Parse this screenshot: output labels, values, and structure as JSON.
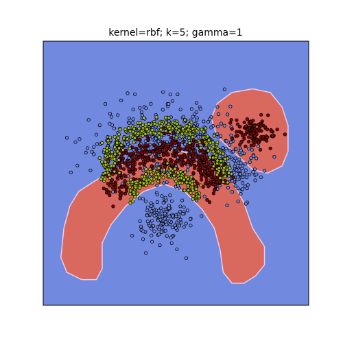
{
  "chart_data": {
    "type": "scatter",
    "title": "kernel=rbf; k=5; gamma=1",
    "xlabel": "",
    "ylabel": "",
    "axes_ticks": "none",
    "grid": false,
    "background_class_color": "#7289e0",
    "region_color": "#d9685f",
    "region_edge_color": "#e8d0e8",
    "plot_border_color": "#000000",
    "regions": [
      {
        "name": "",
        "class": "red",
        "boundary": [
          [
            -1.4,
            -0.05
          ],
          [
            -1.55,
            -0.25
          ],
          [
            -1.65,
            -0.55
          ],
          [
            -1.7,
            -0.95
          ],
          [
            -1.6,
            -1.15
          ],
          [
            -1.35,
            -1.25
          ],
          [
            -1.1,
            -1.25
          ],
          [
            -1.0,
            -1.1
          ],
          [
            -1.0,
            -0.75
          ],
          [
            -0.85,
            -0.5
          ],
          [
            -0.6,
            -0.25
          ],
          [
            -0.3,
            -0.05
          ],
          [
            0.05,
            0.05
          ],
          [
            0.4,
            -0.05
          ],
          [
            0.7,
            -0.3
          ],
          [
            0.9,
            -0.55
          ],
          [
            1.0,
            -0.85
          ],
          [
            1.05,
            -1.15
          ],
          [
            1.2,
            -1.3
          ],
          [
            1.4,
            -1.3
          ],
          [
            1.6,
            -1.2
          ],
          [
            1.75,
            -1.05
          ],
          [
            1.75,
            -0.8
          ],
          [
            1.55,
            -0.55
          ],
          [
            1.4,
            -0.2
          ],
          [
            1.2,
            0.1
          ],
          [
            0.95,
            0.3
          ],
          [
            0.65,
            0.42
          ],
          [
            0.35,
            0.5
          ],
          [
            0.05,
            0.52
          ],
          [
            -0.3,
            0.48
          ],
          [
            -0.6,
            0.35
          ],
          [
            -0.9,
            0.2
          ],
          [
            -1.15,
            0.08
          ]
        ]
      },
      {
        "name": "",
        "class": "red",
        "boundary": [
          [
            0.85,
            0.95
          ],
          [
            0.95,
            1.15
          ],
          [
            1.2,
            1.3
          ],
          [
            1.55,
            1.35
          ],
          [
            1.85,
            1.3
          ],
          [
            2.05,
            1.1
          ],
          [
            2.15,
            0.85
          ],
          [
            2.15,
            0.5
          ],
          [
            2.05,
            0.3
          ],
          [
            1.8,
            0.2
          ],
          [
            1.55,
            0.25
          ],
          [
            1.35,
            0.4
          ],
          [
            1.15,
            0.55
          ],
          [
            0.95,
            0.7
          ]
        ]
      }
    ],
    "clusters": [
      {
        "name": "",
        "color": "#7289e0",
        "center": [
          0.05,
          0.6
        ],
        "rx": 1.15,
        "ry": 0.55,
        "hole": [
          0.05,
          0.1,
          0.7,
          0.35
        ],
        "n": 420,
        "spread": 0.22
      },
      {
        "name": "",
        "color": "#7289e0",
        "center": [
          0.05,
          -0.4
        ],
        "rx": 0.45,
        "ry": 0.3,
        "n": 150,
        "spread": 0.12
      },
      {
        "name": "",
        "color": "#7289e0",
        "center": [
          1.25,
          0.25
        ],
        "rx": 0.35,
        "ry": 0.35,
        "n": 120,
        "spread": 0.15
      },
      {
        "name": "",
        "color": "#7a0a0a",
        "center": [
          0.05,
          0.05
        ],
        "rx": 0.85,
        "ry": 0.45,
        "arc": true,
        "n": 480,
        "spread": 0.13
      },
      {
        "name": "",
        "color": "#7a0a0a",
        "center": [
          1.55,
          0.75
        ],
        "rx": 0.35,
        "ry": 0.18,
        "n": 120,
        "spread": 0.1
      },
      {
        "name": "",
        "color": "#a8c21a",
        "center": [
          0.05,
          0.15
        ],
        "rx": 1.0,
        "ry": 0.7,
        "arc": true,
        "n": 330,
        "spread": 0.07
      },
      {
        "name": "",
        "color": "#a8c21a",
        "center": [
          0.05,
          -0.15
        ],
        "rx": 0.55,
        "ry": 0.35,
        "arc": true,
        "n": 170,
        "spread": 0.05
      }
    ],
    "xlim": [
      -2.0,
      2.5
    ],
    "ylim": [
      -1.6,
      2.0
    ]
  }
}
